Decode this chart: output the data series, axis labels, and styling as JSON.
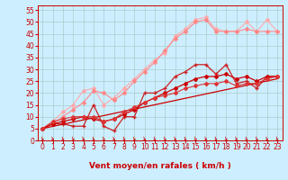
{
  "xlabel": "Vent moyen/en rafales ( km/h )",
  "bg_color": "#cceeff",
  "grid_color": "#aacccc",
  "xlim": [
    -0.5,
    23.5
  ],
  "ylim": [
    0,
    57
  ],
  "yticks": [
    0,
    5,
    10,
    15,
    20,
    25,
    30,
    35,
    40,
    45,
    50,
    55
  ],
  "xticks": [
    0,
    1,
    2,
    3,
    4,
    5,
    6,
    7,
    8,
    9,
    10,
    11,
    12,
    13,
    14,
    15,
    16,
    17,
    18,
    19,
    20,
    21,
    22,
    23
  ],
  "series": [
    {
      "color": "#ffaaaa",
      "lw": 0.8,
      "marker": "D",
      "ms": 2.0,
      "data_x": [
        0,
        1,
        2,
        3,
        4,
        5,
        6,
        7,
        8,
        9,
        10,
        11,
        12,
        13,
        14,
        15,
        16,
        17,
        18,
        19,
        20,
        21,
        22,
        23
      ],
      "data_y": [
        5,
        8,
        12,
        15,
        21,
        22,
        15,
        18,
        22,
        26,
        30,
        34,
        37,
        44,
        47,
        51,
        52,
        47,
        46,
        46,
        50,
        46,
        51,
        46
      ]
    },
    {
      "color": "#ff8888",
      "lw": 0.8,
      "marker": "D",
      "ms": 2.0,
      "data_x": [
        0,
        1,
        2,
        3,
        4,
        5,
        6,
        7,
        8,
        9,
        10,
        11,
        12,
        13,
        14,
        15,
        16,
        17,
        18,
        19,
        20,
        21,
        22,
        23
      ],
      "data_y": [
        5,
        7,
        10,
        13,
        16,
        21,
        20,
        17,
        20,
        25,
        29,
        33,
        38,
        43,
        46,
        50,
        51,
        46,
        46,
        46,
        47,
        46,
        46,
        46
      ]
    },
    {
      "color": "#cc2222",
      "lw": 0.9,
      "marker": "+",
      "ms": 3.5,
      "data_x": [
        0,
        1,
        2,
        3,
        4,
        5,
        6,
        7,
        8,
        9,
        10,
        11,
        12,
        13,
        14,
        15,
        16,
        17,
        18,
        19,
        20,
        21,
        22,
        23
      ],
      "data_y": [
        5,
        7,
        7,
        6,
        6,
        15,
        6,
        4,
        10,
        10,
        20,
        20,
        22,
        27,
        29,
        32,
        32,
        28,
        32,
        24,
        25,
        22,
        27,
        27
      ]
    },
    {
      "color": "#cc0000",
      "lw": 0.9,
      "marker": "D",
      "ms": 2.0,
      "data_x": [
        0,
        1,
        2,
        3,
        4,
        5,
        6,
        7,
        8,
        9,
        10,
        11,
        12,
        13,
        14,
        15,
        16,
        17,
        18,
        19,
        20,
        21,
        22,
        23
      ],
      "data_y": [
        5,
        7,
        8,
        9,
        10,
        9,
        8,
        9,
        11,
        13,
        16,
        18,
        20,
        22,
        24,
        26,
        27,
        27,
        28,
        26,
        27,
        25,
        27,
        27
      ]
    },
    {
      "color": "#cc0000",
      "lw": 0.9,
      "marker": null,
      "ms": 0,
      "data_x": [
        0,
        23
      ],
      "data_y": [
        5,
        26
      ]
    },
    {
      "color": "#dd3333",
      "lw": 0.8,
      "marker": "D",
      "ms": 2.0,
      "data_x": [
        0,
        1,
        2,
        3,
        4,
        5,
        6,
        7,
        8,
        9,
        10,
        11,
        12,
        13,
        14,
        15,
        16,
        17,
        18,
        19,
        20,
        21,
        22,
        23
      ],
      "data_y": [
        5,
        8,
        9,
        10,
        10,
        10,
        8,
        9,
        12,
        14,
        16,
        18,
        19,
        20,
        22,
        23,
        24,
        24,
        25,
        23,
        24,
        24,
        26,
        27
      ]
    }
  ],
  "xlabel_color": "#cc0000",
  "xlabel_fontsize": 6.5,
  "tick_color": "#cc0000",
  "tick_fontsize": 5.5
}
